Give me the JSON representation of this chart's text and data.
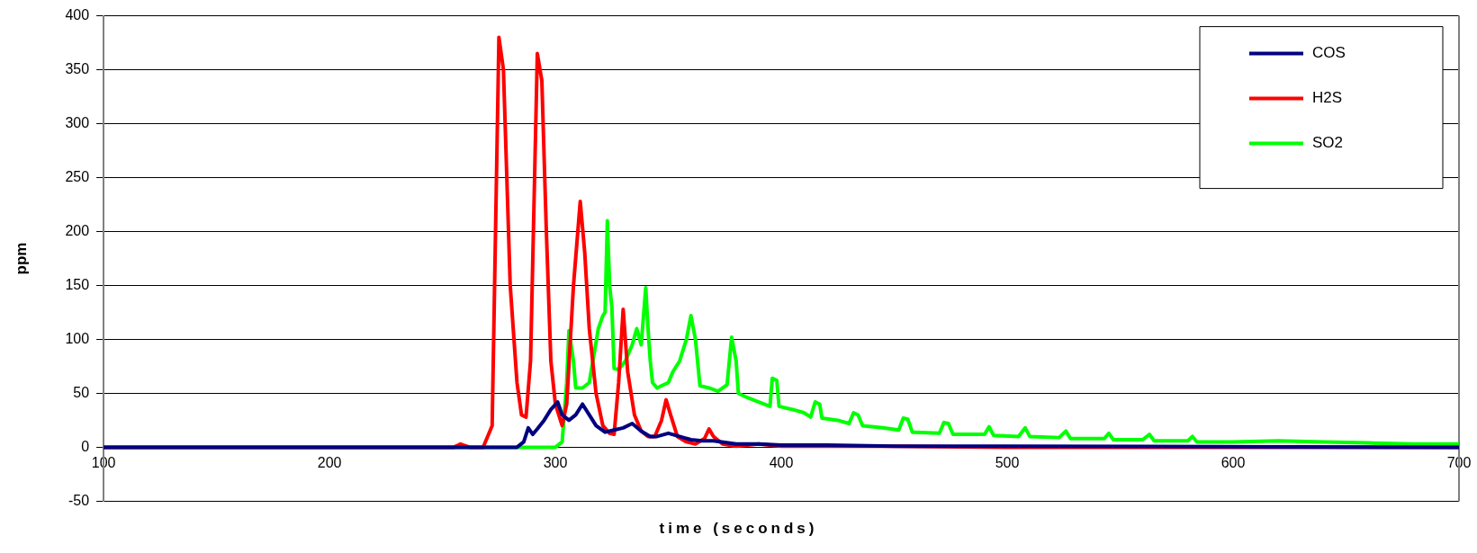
{
  "chart_data": {
    "type": "line",
    "xlabel": "time (seconds)",
    "ylabel": "ppm",
    "xlim": [
      100,
      700
    ],
    "xticks": [
      100,
      200,
      300,
      400,
      500,
      600,
      700
    ],
    "ylim": [
      -50,
      400
    ],
    "yticks": [
      -50,
      0,
      50,
      100,
      150,
      200,
      250,
      300,
      350,
      400
    ],
    "grid": "y",
    "legend": "top right",
    "marker": "none",
    "line_style": "solid",
    "series": [
      {
        "name": "COS",
        "color": "#000080",
        "x": [
          100,
          283,
          286,
          288,
          290,
          292,
          295,
          298,
          301,
          303,
          306,
          309,
          312,
          315,
          318,
          322,
          326,
          330,
          334,
          338,
          342,
          345,
          350,
          355,
          360,
          365,
          370,
          380,
          390,
          400,
          420,
          450,
          500,
          700
        ],
        "values": [
          0,
          0,
          5,
          18,
          12,
          17,
          25,
          35,
          42,
          30,
          25,
          30,
          40,
          30,
          20,
          14,
          16,
          18,
          22,
          15,
          10,
          10,
          13,
          10,
          7,
          6,
          6,
          3,
          3,
          2,
          2,
          1,
          1,
          0
        ]
      },
      {
        "name": "H2S",
        "color": "#ff0000",
        "x": [
          100,
          255,
          258,
          262,
          268,
          272,
          275,
          277,
          280,
          283,
          285,
          287,
          289,
          292,
          294,
          296,
          298,
          300,
          303,
          305,
          308,
          311,
          313,
          315,
          318,
          321,
          324,
          326,
          328,
          330,
          332,
          335,
          338,
          341,
          344,
          347,
          349,
          351,
          354,
          358,
          362,
          366,
          368,
          370,
          374,
          380,
          390,
          400,
          450,
          500,
          700
        ],
        "values": [
          0,
          0,
          3,
          0,
          0,
          20,
          380,
          350,
          150,
          60,
          30,
          28,
          80,
          365,
          340,
          200,
          80,
          40,
          20,
          40,
          150,
          228,
          180,
          110,
          50,
          20,
          13,
          12,
          60,
          128,
          70,
          30,
          15,
          10,
          10,
          25,
          44,
          30,
          10,
          5,
          3,
          8,
          17,
          10,
          3,
          1,
          3,
          1,
          1,
          0,
          0
        ]
      },
      {
        "name": "SO2",
        "color": "#00ff00",
        "x": [
          100,
          300,
          303,
          305,
          306,
          308,
          309,
          312,
          315,
          317,
          319,
          321,
          322,
          323,
          324,
          325,
          326,
          328,
          331,
          334,
          336,
          338,
          340,
          341,
          342,
          343,
          345,
          347,
          350,
          352,
          355,
          358,
          360,
          362,
          364,
          368,
          372,
          376,
          378,
          380,
          381,
          385,
          390,
          395,
          396,
          398,
          399,
          405,
          410,
          413,
          415,
          417,
          418,
          425,
          430,
          432,
          434,
          436,
          445,
          452,
          454,
          456,
          458,
          470,
          472,
          474,
          476,
          490,
          492,
          494,
          505,
          508,
          510,
          523,
          526,
          528,
          543,
          545,
          547,
          560,
          563,
          565,
          580,
          582,
          584,
          600,
          620,
          640,
          660,
          680,
          700
        ],
        "values": [
          0,
          0,
          5,
          60,
          108,
          80,
          55,
          55,
          60,
          85,
          110,
          122,
          125,
          210,
          150,
          130,
          73,
          72,
          80,
          95,
          110,
          95,
          148,
          110,
          80,
          60,
          55,
          57,
          60,
          70,
          80,
          100,
          122,
          100,
          57,
          55,
          52,
          58,
          102,
          80,
          50,
          46,
          42,
          38,
          64,
          62,
          38,
          35,
          32,
          28,
          42,
          40,
          27,
          25,
          22,
          32,
          30,
          20,
          18,
          16,
          27,
          26,
          14,
          13,
          23,
          22,
          12,
          12,
          19,
          11,
          10,
          18,
          10,
          9,
          15,
          8,
          8,
          13,
          7,
          7,
          12,
          6,
          6,
          10,
          5,
          5,
          6,
          5,
          4,
          3,
          3
        ]
      }
    ]
  }
}
